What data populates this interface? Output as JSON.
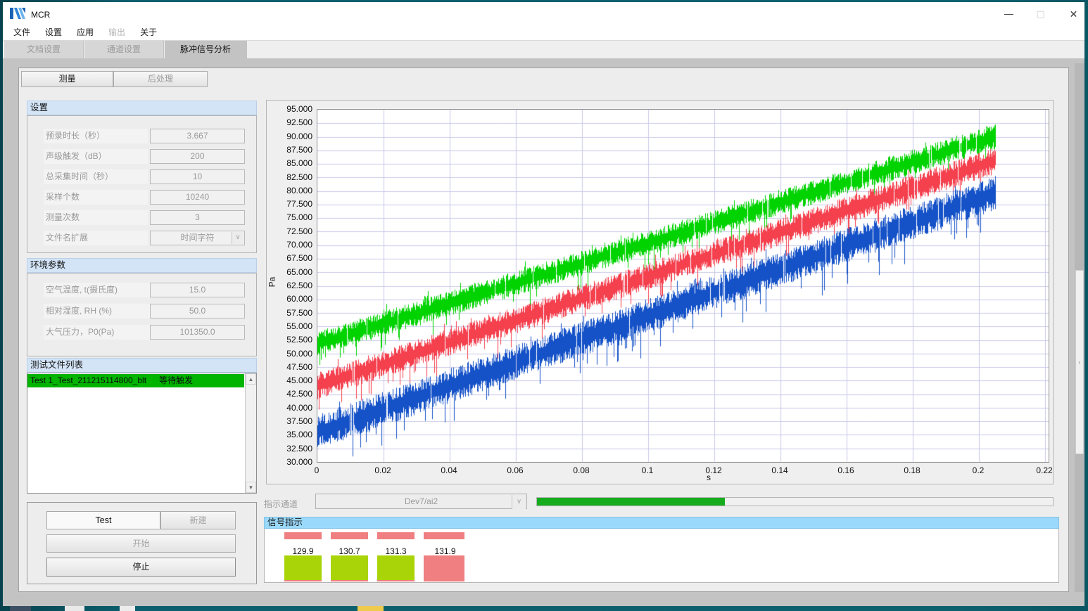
{
  "window": {
    "title": "MCR"
  },
  "menu": {
    "items": [
      {
        "label": "文件"
      },
      {
        "label": "设置"
      },
      {
        "label": "应用"
      },
      {
        "label": "输出"
      },
      {
        "label": "关于"
      }
    ]
  },
  "tabs": [
    {
      "label": "文档设置"
    },
    {
      "label": "通道设置"
    },
    {
      "label": "脉冲信号分析"
    }
  ],
  "subtabs": {
    "measure": "测量",
    "post": "后处理"
  },
  "settings": {
    "header": "设置",
    "fields": [
      {
        "label": "预录时长（秒）",
        "value": "3.667"
      },
      {
        "label": "声级触发（dB）",
        "value": "200"
      },
      {
        "label": "总采集时间（秒）",
        "value": "10"
      },
      {
        "label": "采样个数",
        "value": "10240"
      },
      {
        "label": "测量次数",
        "value": "3"
      },
      {
        "label": "文件名扩展",
        "value": "时间字符"
      }
    ]
  },
  "environment": {
    "header": "环境参数",
    "fields": [
      {
        "label": "空气温度, t(摄氏度)",
        "value": "15.0"
      },
      {
        "label": "相对湿度, RH (%)",
        "value": "50.0"
      },
      {
        "label": "大气压力，P0(Pa)",
        "value": "101350.0"
      }
    ]
  },
  "file_list": {
    "header": "测试文件列表",
    "rows": [
      {
        "name": "Test 1_Test_211215114800_blt",
        "status": "等待触发"
      }
    ]
  },
  "controls": {
    "test_name": "Test",
    "new_label": "新建",
    "start_label": "开始",
    "stop_label": "停止"
  },
  "indicator_channel": {
    "label": "指示通道",
    "value": "Dev7/ai2"
  },
  "progress": {
    "percent": 36.4
  },
  "signal_panel": {
    "header": "信号指示",
    "indicators": [
      {
        "value": "129.9",
        "state": "ok"
      },
      {
        "value": "130.7",
        "state": "ok"
      },
      {
        "value": "131.3",
        "state": "ok"
      },
      {
        "value": "131.9",
        "state": "alarm"
      }
    ]
  },
  "colors": {
    "ok_green": "#a9d408",
    "alarm_salmon": "#ef7f80",
    "progress_green": "#16ac1e",
    "selected_row_green": "#00b400",
    "grid": "#c9c9e9"
  },
  "chart_data": {
    "type": "line",
    "title": "",
    "xlabel": "s",
    "ylabel": "Pa",
    "xlim": [
      0,
      0.22
    ],
    "ylim": [
      30,
      95
    ],
    "grid": true,
    "x_tick_labels": [
      "0",
      "0.02",
      "0.04",
      "0.06",
      "0.08",
      "0.1",
      "0.12",
      "0.14",
      "0.16",
      "0.18",
      "0.2",
      "0.22"
    ],
    "y_tick_labels": [
      "95.000",
      "92.500",
      "90.000",
      "87.500",
      "85.000",
      "82.500",
      "80.000",
      "77.500",
      "75.000",
      "72.500",
      "70.000",
      "67.500",
      "65.000",
      "62.500",
      "60.000",
      "57.500",
      "55.000",
      "52.500",
      "50.000",
      "47.500",
      "45.000",
      "42.500",
      "40.000",
      "37.500",
      "35.000",
      "32.500",
      "30.000"
    ],
    "x_data_start": 0,
    "x_data_end": 0.205,
    "series": [
      {
        "name": "trace-green",
        "color": "#00d300",
        "start_pa": 51.8,
        "end_pa": 90.0,
        "band_pa": 4.6
      },
      {
        "name": "trace-red",
        "color": "#f5404e",
        "start_pa": 44.0,
        "end_pa": 85.6,
        "band_pa": 5.0
      },
      {
        "name": "trace-blue",
        "color": "#1552c8",
        "start_pa": 35.5,
        "end_pa": 79.6,
        "band_pa": 6.4
      }
    ]
  }
}
